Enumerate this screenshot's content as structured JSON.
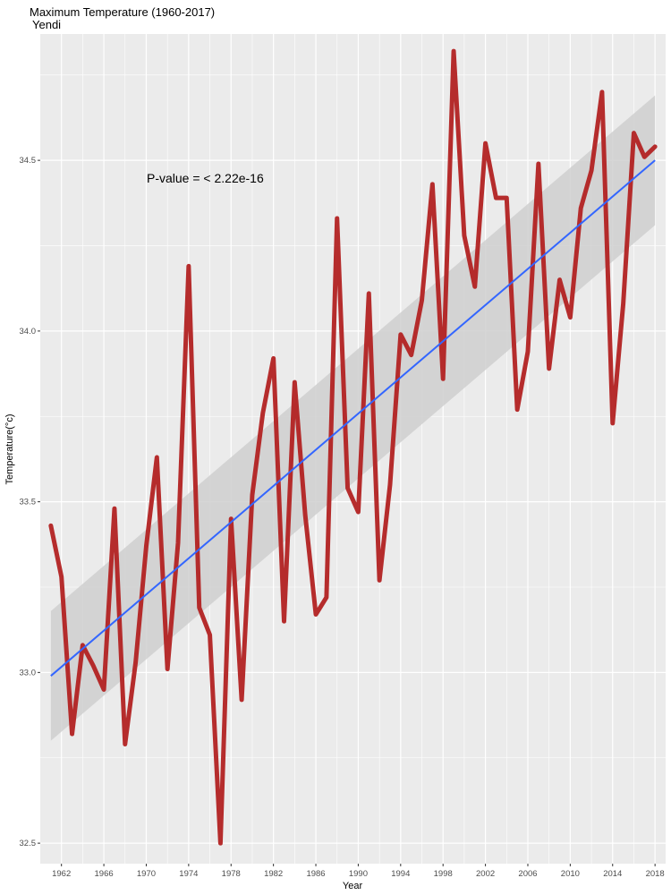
{
  "chart_data": {
    "type": "line",
    "title": "Maximum Temperature (1960-2017)",
    "subtitle": "Yendi",
    "xlabel": "Year",
    "ylabel": "Temperature(°c)",
    "annotation": "P-value = < 2.22e-16",
    "xlim": [
      1960,
      2019
    ],
    "ylim": [
      32.44,
      34.87
    ],
    "x_ticks": [
      1962,
      1966,
      1970,
      1974,
      1978,
      1982,
      1986,
      1990,
      1994,
      1998,
      2002,
      2006,
      2010,
      2014,
      2018
    ],
    "y_ticks": [
      32.5,
      33.0,
      33.5,
      34.0,
      34.5
    ],
    "y_tick_labels": [
      "32.5",
      "33.0",
      "33.5",
      "34.0",
      "34.5"
    ],
    "grid": true,
    "background": "#ebebeb",
    "series": [
      {
        "color": "#b22222",
        "x": [
          1961,
          1962,
          1963,
          1964,
          1965,
          1966,
          1967,
          1968,
          1969,
          1970,
          1971,
          1972,
          1973,
          1974,
          1975,
          1976,
          1977,
          1978,
          1979,
          1980,
          1981,
          1982,
          1983,
          1984,
          1985,
          1986,
          1987,
          1988,
          1989,
          1990,
          1991,
          1992,
          1993,
          1994,
          1995,
          1996,
          1997,
          1998,
          1999,
          2000,
          2001,
          2002,
          2003,
          2004,
          2005,
          2006,
          2007,
          2008,
          2009,
          2010,
          2011,
          2012,
          2013,
          2014,
          2015,
          2016,
          2017,
          2018
        ],
        "values": [
          33.43,
          33.28,
          32.82,
          33.08,
          33.02,
          32.95,
          33.48,
          32.79,
          33.03,
          33.37,
          33.63,
          33.01,
          33.38,
          34.19,
          33.19,
          33.11,
          32.5,
          33.45,
          32.92,
          33.52,
          33.76,
          33.92,
          33.15,
          33.85,
          33.46,
          33.17,
          33.22,
          34.33,
          33.54,
          33.47,
          34.11,
          33.27,
          33.55,
          33.99,
          33.93,
          34.09,
          34.43,
          33.86,
          34.82,
          34.28,
          34.13,
          34.55,
          34.39,
          34.39,
          33.77,
          33.94,
          34.49,
          33.89,
          34.15,
          34.04,
          34.36,
          34.47,
          34.7,
          33.73,
          34.08,
          34.58,
          34.51,
          34.54
        ]
      }
    ],
    "trend": {
      "color": "#3366ff",
      "band_color": "#cfcfcf",
      "x": [
        1961,
        2018
      ],
      "fit": [
        32.99,
        34.5
      ],
      "ci_lower": [
        32.8,
        34.31
      ],
      "ci_upper": [
        33.18,
        34.69
      ]
    }
  }
}
